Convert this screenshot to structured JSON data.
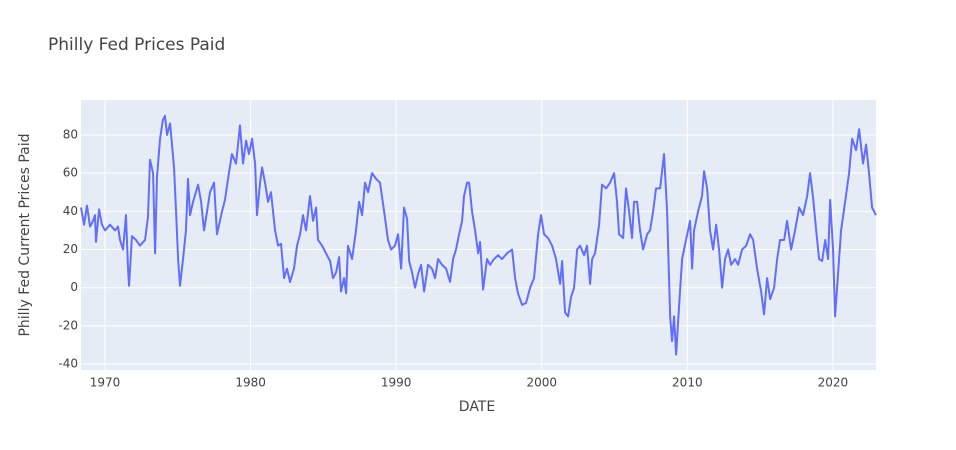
{
  "chart_data": {
    "type": "line",
    "title": "Philly Fed Prices Paid",
    "x_label": "DATE",
    "y_label": "Philly Fed Current Prices Paid",
    "x": [
      1968.35,
      1968.56,
      1968.76,
      1968.97,
      1969.18,
      1969.31,
      1969.38,
      1969.59,
      1969.79,
      1970.0,
      1970.34,
      1970.69,
      1970.89,
      1971.03,
      1971.24,
      1971.44,
      1971.58,
      1971.65,
      1971.85,
      1972.13,
      1972.4,
      1972.75,
      1972.95,
      1973.09,
      1973.3,
      1973.44,
      1973.57,
      1973.78,
      1973.98,
      1974.12,
      1974.26,
      1974.47,
      1974.6,
      1974.74,
      1974.88,
      1975.02,
      1975.15,
      1975.36,
      1975.56,
      1975.7,
      1975.84,
      1976.05,
      1976.39,
      1976.6,
      1976.8,
      1977.01,
      1977.21,
      1977.49,
      1977.69,
      1978.04,
      1978.24,
      1978.45,
      1978.72,
      1979.0,
      1979.27,
      1979.48,
      1979.69,
      1979.89,
      1980.1,
      1980.31,
      1980.44,
      1980.65,
      1980.79,
      1980.99,
      1981.2,
      1981.4,
      1981.68,
      1981.89,
      1982.09,
      1982.3,
      1982.5,
      1982.71,
      1982.98,
      1983.19,
      1983.4,
      1983.6,
      1983.81,
      1984.08,
      1984.29,
      1984.5,
      1984.63,
      1984.91,
      1985.18,
      1985.46,
      1985.66,
      1985.87,
      1986.08,
      1986.21,
      1986.42,
      1986.56,
      1986.69,
      1986.97,
      1987.24,
      1987.45,
      1987.66,
      1987.86,
      1988.07,
      1988.34,
      1988.62,
      1988.89,
      1989.17,
      1989.44,
      1989.65,
      1989.92,
      1990.13,
      1990.34,
      1990.54,
      1990.75,
      1990.89,
      1991.09,
      1991.3,
      1991.5,
      1991.71,
      1991.92,
      1992.19,
      1992.46,
      1992.67,
      1992.88,
      1993.15,
      1993.43,
      1993.7,
      1993.91,
      1994.11,
      1994.32,
      1994.53,
      1994.66,
      1994.87,
      1995.01,
      1995.21,
      1995.42,
      1995.63,
      1995.76,
      1995.97,
      1996.24,
      1996.45,
      1996.72,
      1997.0,
      1997.27,
      1997.62,
      1997.96,
      1998.17,
      1998.37,
      1998.65,
      1998.92,
      1999.2,
      1999.47,
      1999.75,
      1999.95,
      2000.16,
      2000.43,
      2000.71,
      2000.98,
      2001.26,
      2001.4,
      2001.6,
      2001.81,
      2002.01,
      2002.22,
      2002.43,
      2002.63,
      2002.91,
      2003.11,
      2003.32,
      2003.46,
      2003.66,
      2003.94,
      2004.14,
      2004.42,
      2004.69,
      2004.97,
      2005.17,
      2005.31,
      2005.59,
      2005.79,
      2006.0,
      2006.2,
      2006.34,
      2006.55,
      2006.75,
      2006.96,
      2007.24,
      2007.44,
      2007.65,
      2007.85,
      2008.13,
      2008.4,
      2008.61,
      2008.82,
      2008.95,
      2009.09,
      2009.23,
      2009.43,
      2009.64,
      2009.91,
      2010.19,
      2010.33,
      2010.46,
      2010.74,
      2011.01,
      2011.15,
      2011.36,
      2011.56,
      2011.77,
      2011.98,
      2012.18,
      2012.39,
      2012.59,
      2012.8,
      2013.01,
      2013.28,
      2013.49,
      2013.76,
      2014.04,
      2014.31,
      2014.52,
      2014.79,
      2015.07,
      2015.27,
      2015.48,
      2015.69,
      2015.96,
      2016.17,
      2016.37,
      2016.65,
      2016.85,
      2017.13,
      2017.4,
      2017.68,
      2017.95,
      2018.23,
      2018.43,
      2018.64,
      2018.85,
      2019.05,
      2019.26,
      2019.47,
      2019.67,
      2019.81,
      2020.01,
      2020.15,
      2020.36,
      2020.56,
      2020.84,
      2021.11,
      2021.32,
      2021.59,
      2021.8,
      2022.07,
      2022.28,
      2022.48,
      2022.69,
      2022.96
    ],
    "series": [
      {
        "color": "#636efa",
        "values": [
          42,
          33,
          43,
          32,
          35,
          38,
          24,
          41,
          33,
          30,
          33,
          30,
          32,
          25,
          20,
          38,
          10,
          1,
          27,
          25,
          22,
          25,
          37,
          67,
          60,
          18,
          58,
          78,
          88,
          90,
          80,
          86,
          75,
          63,
          40,
          15,
          1,
          15,
          30,
          57,
          38,
          45,
          54,
          45,
          30,
          40,
          50,
          55,
          28,
          40,
          46,
          57,
          70,
          65,
          85,
          65,
          77,
          70,
          78,
          65,
          38,
          55,
          63,
          55,
          45,
          50,
          30,
          22,
          23,
          5,
          10,
          3,
          10,
          22,
          28,
          38,
          30,
          48,
          35,
          42,
          25,
          22,
          18,
          14,
          5,
          8,
          16,
          -2,
          5,
          -3,
          22,
          15,
          30,
          45,
          38,
          55,
          50,
          60,
          57,
          55,
          40,
          25,
          20,
          22,
          28,
          10,
          42,
          36,
          14,
          8,
          0,
          7,
          12,
          -2,
          12,
          10,
          5,
          15,
          12,
          10,
          3,
          15,
          20,
          28,
          35,
          48,
          55,
          55,
          40,
          30,
          18,
          24,
          -1,
          15,
          12,
          15,
          17,
          15,
          18,
          20,
          5,
          -3,
          -9,
          -8,
          0,
          5,
          28,
          38,
          28,
          26,
          22,
          15,
          2,
          14,
          -13,
          -15,
          -5,
          0,
          20,
          22,
          17,
          22,
          2,
          15,
          18,
          33,
          54,
          52,
          55,
          60,
          45,
          28,
          26,
          52,
          40,
          26,
          45,
          45,
          30,
          20,
          28,
          30,
          40,
          52,
          52,
          70,
          40,
          -15,
          -28,
          -15,
          -35,
          -10,
          15,
          25,
          35,
          10,
          30,
          40,
          48,
          61,
          52,
          30,
          20,
          33,
          20,
          0,
          15,
          20,
          12,
          15,
          12,
          20,
          22,
          28,
          25,
          10,
          -2,
          -14,
          5,
          -6,
          0,
          15,
          25,
          25,
          35,
          20,
          30,
          42,
          38,
          48,
          60,
          47,
          30,
          15,
          14,
          25,
          15,
          46,
          20,
          -15,
          8,
          30,
          45,
          60,
          78,
          72,
          83,
          65,
          75,
          60,
          42,
          38
        ]
      }
    ],
    "xlim": [
      1968.35,
      2022.96
    ],
    "xticks": [
      1970,
      1980,
      1990,
      2000,
      2010,
      2020
    ],
    "ylim": [
      -43.1,
      98.3
    ],
    "yticks": [
      -40,
      -20,
      0,
      20,
      40,
      60,
      80
    ],
    "grid": true
  }
}
